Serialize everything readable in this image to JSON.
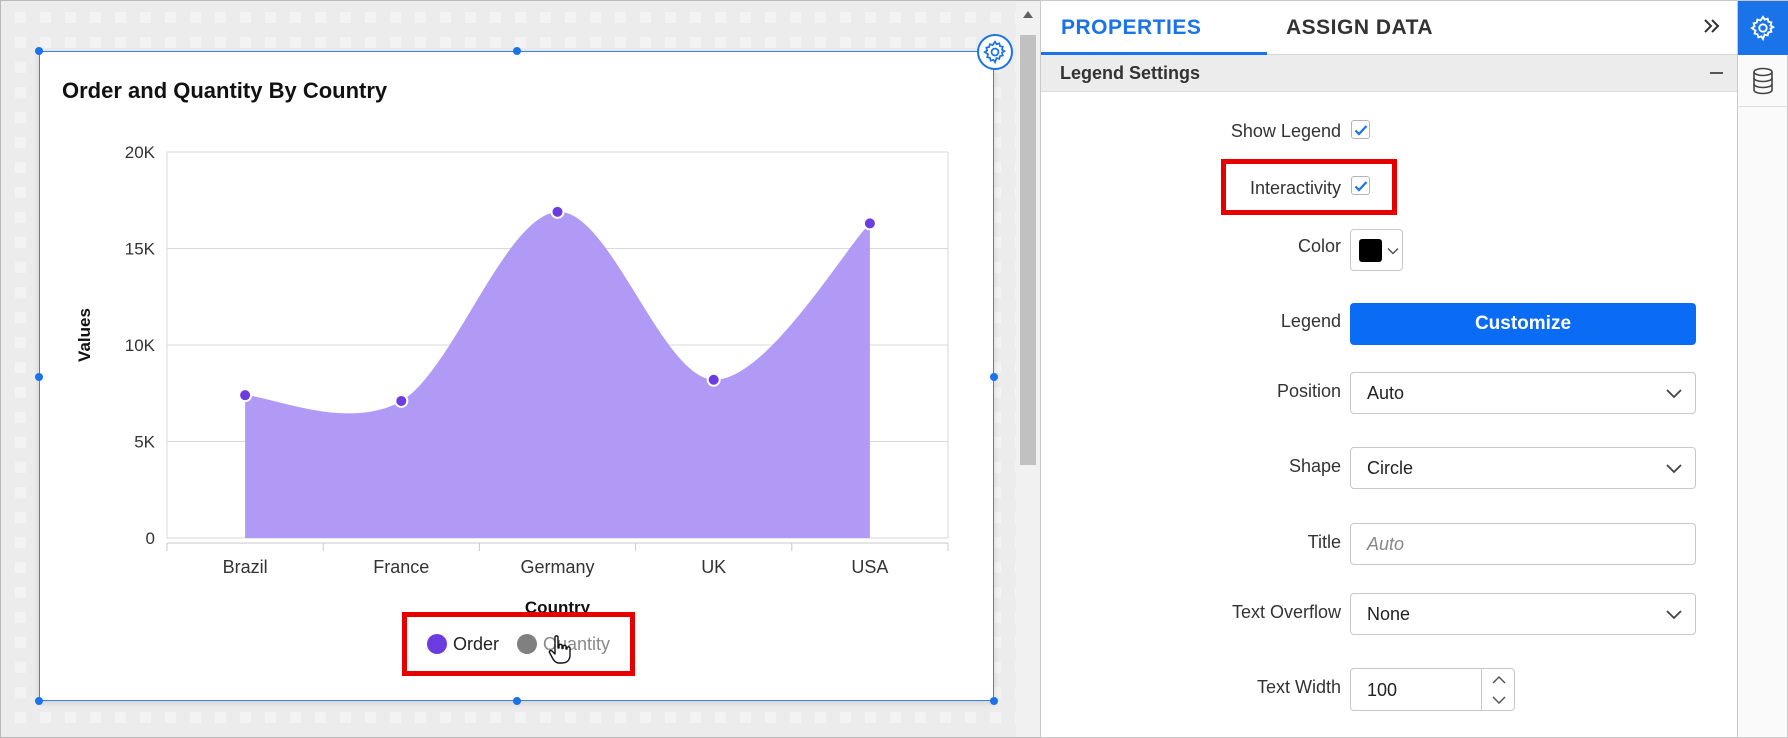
{
  "chart": {
    "title": "Order and Quantity By Country",
    "legend": [
      {
        "label": "Order",
        "color": "#6c3ce0",
        "state": "visible"
      },
      {
        "label": "Quantity",
        "color": "#808080",
        "state": "hidden"
      }
    ]
  },
  "chart_data": {
    "type": "area",
    "title": "Order and Quantity By Country",
    "xlabel": "Country",
    "ylabel": "Values",
    "categories": [
      "Brazil",
      "France",
      "Germany",
      "UK",
      "USA"
    ],
    "series": [
      {
        "name": "Order",
        "values": [
          7400,
          7100,
          16900,
          8200,
          16300
        ],
        "color": "#b19af5",
        "marker_color": "#6c3ce0"
      }
    ],
    "yticks": [
      0,
      5000,
      10000,
      15000,
      20000
    ],
    "ytick_labels": [
      "0",
      "5K",
      "10K",
      "15K",
      "20K"
    ],
    "ylim": [
      0,
      20000
    ],
    "grid": true,
    "legend_position": "bottom"
  },
  "panel": {
    "tabs": [
      {
        "label": "PROPERTIES",
        "active": true
      },
      {
        "label": "ASSIGN DATA",
        "active": false
      }
    ],
    "section_title": "Legend Settings",
    "show_legend": {
      "label": "Show Legend",
      "checked": true
    },
    "interactivity": {
      "label": "Interactivity",
      "checked": true
    },
    "color": {
      "label": "Color",
      "value": "#000000"
    },
    "legend": {
      "label": "Legend",
      "button_label": "Customize"
    },
    "position": {
      "label": "Position",
      "value": "Auto"
    },
    "shape": {
      "label": "Shape",
      "value": "Circle"
    },
    "title": {
      "label": "Title",
      "placeholder": "Auto"
    },
    "text_overflow": {
      "label": "Text Overflow",
      "value": "None"
    },
    "text_width": {
      "label": "Text Width",
      "value": "100"
    }
  },
  "rail": {
    "items": [
      {
        "icon": "gear-icon",
        "active": true
      },
      {
        "icon": "database-icon",
        "active": false
      }
    ]
  }
}
